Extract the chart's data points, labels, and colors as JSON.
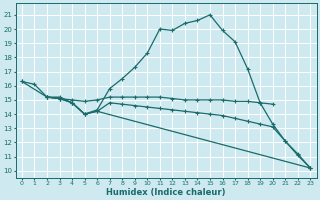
{
  "xlabel": "Humidex (Indice chaleur)",
  "bg_color": "#ceeaf0",
  "grid_color": "#ffffff",
  "line_color": "#1a6b6b",
  "xlim": [
    -0.5,
    23.5
  ],
  "ylim": [
    9.5,
    21.8
  ],
  "yticks": [
    10,
    11,
    12,
    13,
    14,
    15,
    16,
    17,
    18,
    19,
    20,
    21
  ],
  "xticks": [
    0,
    1,
    2,
    3,
    4,
    5,
    6,
    7,
    8,
    9,
    10,
    11,
    12,
    13,
    14,
    15,
    16,
    17,
    18,
    19,
    20,
    21,
    22,
    23
  ],
  "series": [
    {
      "x": [
        0,
        1,
        2,
        3,
        4,
        5,
        6,
        7,
        8,
        9,
        10,
        11,
        12,
        13,
        14,
        15,
        16,
        17,
        18,
        19,
        20,
        21,
        22,
        23
      ],
      "y": [
        16.3,
        16.1,
        15.2,
        15.2,
        14.8,
        14.0,
        14.3,
        15.8,
        16.5,
        17.3,
        18.3,
        20.0,
        19.9,
        20.4,
        20.6,
        21.0,
        19.9,
        19.1,
        17.2,
        14.8,
        13.3,
        12.1,
        11.1,
        10.2
      ]
    },
    {
      "x": [
        2,
        3,
        4,
        5,
        6,
        7,
        8,
        9,
        10,
        11,
        12,
        13,
        14,
        15,
        16,
        17,
        18,
        19,
        20
      ],
      "y": [
        15.2,
        15.1,
        15.0,
        14.9,
        15.0,
        15.2,
        15.2,
        15.2,
        15.2,
        15.2,
        15.1,
        15.0,
        15.0,
        15.0,
        15.0,
        14.9,
        14.9,
        14.8,
        14.7
      ]
    },
    {
      "x": [
        0,
        2,
        3,
        4,
        5,
        6,
        23
      ],
      "y": [
        16.3,
        15.2,
        15.1,
        14.8,
        14.0,
        14.2,
        10.2
      ]
    },
    {
      "x": [
        2,
        3,
        4,
        5,
        6,
        7,
        8,
        9,
        10,
        11,
        12,
        13,
        14,
        15,
        16,
        17,
        18,
        19,
        20,
        21,
        22,
        23
      ],
      "y": [
        15.2,
        15.1,
        14.8,
        14.0,
        14.2,
        14.8,
        14.7,
        14.6,
        14.5,
        14.4,
        14.3,
        14.2,
        14.1,
        14.0,
        13.9,
        13.7,
        13.5,
        13.3,
        13.1,
        12.1,
        11.2,
        10.2
      ]
    }
  ]
}
